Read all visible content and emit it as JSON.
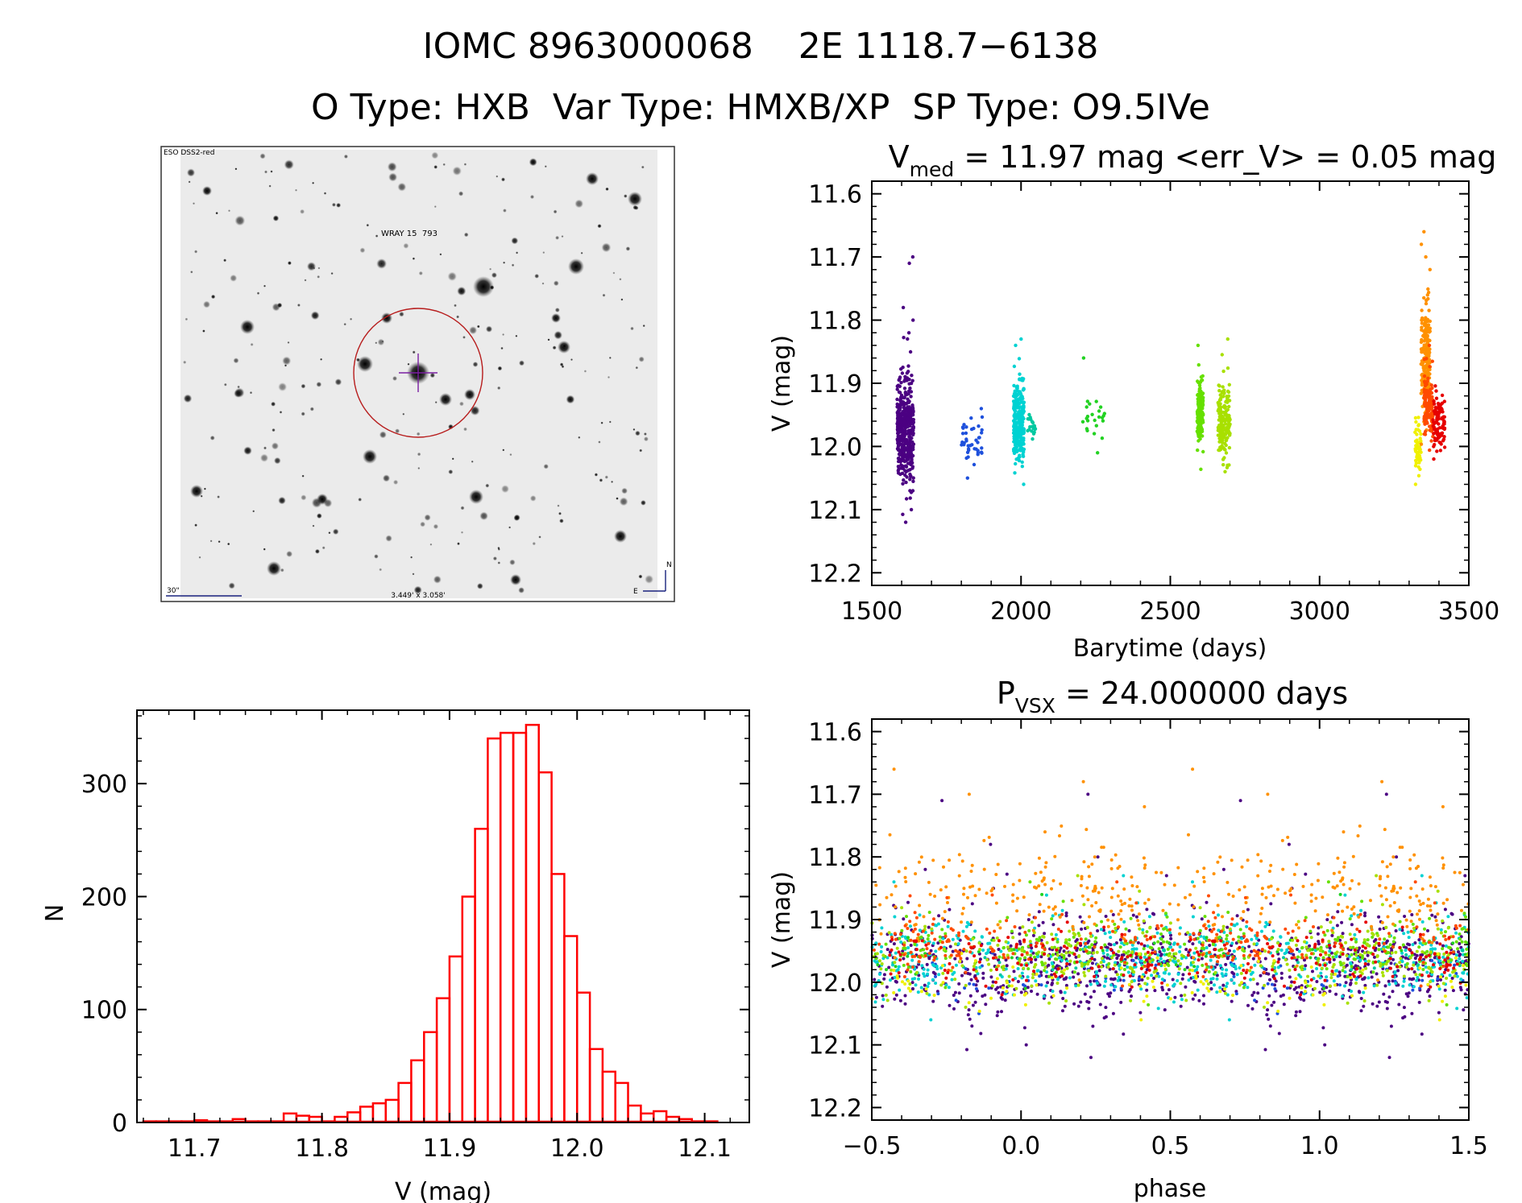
{
  "header": {
    "line1": "IOMC 8963000068    2E 1118.7−6138",
    "line2": "O Type: HXB  Var Type: HMXB/XP  SP Type: O9.5IVe"
  },
  "finder": {
    "survey_label": "ESO DSS2-red",
    "target_label": "WRAY 15  793",
    "scale_label": "30\"",
    "fov_label": "3.449' x 3.058'",
    "north_label": "N",
    "east_label": "E"
  },
  "colors": {
    "hist": "#ff0000",
    "axis": "#000000",
    "finder_label": "#1a237e",
    "target_circle": "#b71c1c",
    "target_cross": "#7b1fa2"
  },
  "chart_data": [
    {
      "type": "scatter",
      "id": "lightcurve",
      "title_main": "V",
      "title_sub": "med",
      "title_rest": " = 11.97 mag <err_V> = 0.05 mag",
      "xlabel": "Barytime (days)",
      "ylabel": "V (mag)",
      "xlim": [
        1500,
        3500
      ],
      "ylim": [
        12.22,
        11.58
      ],
      "xticks": [
        1500,
        2000,
        2500,
        3000,
        3500
      ],
      "xtick_labels": [
        "1500",
        "2000",
        "2500",
        "3000",
        "3500"
      ],
      "yticks": [
        11.6,
        11.7,
        11.8,
        11.9,
        12.0,
        12.1,
        12.2
      ],
      "ytick_labels": [
        "11.6",
        "11.7",
        "11.8",
        "11.9",
        "12.0",
        "12.1",
        "12.2"
      ],
      "clusters": [
        {
          "x": [
            1585,
            1640
          ],
          "center": 11.97,
          "spread": 0.06,
          "n": 420,
          "color": "#4b0082",
          "outliers": [
            11.7,
            11.71,
            11.78,
            11.8,
            11.82,
            12.1,
            12.12
          ]
        },
        {
          "x": [
            1800,
            1870
          ],
          "center": 11.99,
          "spread": 0.025,
          "n": 40,
          "color": "#1e50dc",
          "outliers": [
            12.05,
            11.94
          ]
        },
        {
          "x": [
            1975,
            2010
          ],
          "center": 11.96,
          "spread": 0.05,
          "n": 260,
          "color": "#00d2d2",
          "outliers": [
            11.83,
            11.84,
            12.06
          ]
        },
        {
          "x": [
            2020,
            2050
          ],
          "center": 11.97,
          "spread": 0.015,
          "n": 20,
          "color": "#00c8a0",
          "outliers": []
        },
        {
          "x": [
            2195,
            2280
          ],
          "center": 11.96,
          "spread": 0.02,
          "n": 22,
          "color": "#22d222",
          "outliers": [
            11.86,
            12.01
          ]
        },
        {
          "x": [
            2590,
            2610
          ],
          "center": 11.95,
          "spread": 0.035,
          "n": 160,
          "color": "#66e000",
          "outliers": [
            11.84
          ]
        },
        {
          "x": [
            2660,
            2700
          ],
          "center": 11.96,
          "spread": 0.04,
          "n": 170,
          "color": "#a8e000",
          "outliers": [
            11.83,
            12.04
          ]
        },
        {
          "x": [
            3320,
            3340
          ],
          "center": 12.0,
          "spread": 0.03,
          "n": 50,
          "color": "#f0f000",
          "outliers": [
            12.06
          ]
        },
        {
          "x": [
            3340,
            3370
          ],
          "center": 11.86,
          "spread": 0.06,
          "n": 180,
          "color": "#ff9100",
          "outliers": [
            11.66,
            11.68,
            11.7,
            11.72
          ]
        },
        {
          "x": [
            3350,
            3380
          ],
          "center": 11.93,
          "spread": 0.04,
          "n": 120,
          "color": "#ff4a00",
          "outliers": [
            11.84
          ]
        },
        {
          "x": [
            3380,
            3420
          ],
          "center": 11.96,
          "spread": 0.03,
          "n": 100,
          "color": "#e60000",
          "outliers": [
            12.02
          ]
        }
      ]
    },
    {
      "type": "bar",
      "id": "histogram",
      "xlabel": "V (mag)",
      "ylabel": "N",
      "xlim": [
        11.655,
        12.135
      ],
      "ylim": [
        0,
        365
      ],
      "bin_start": 11.66,
      "bin_width": 0.01,
      "values": [
        1,
        1,
        1,
        1,
        2,
        1,
        1,
        3,
        1,
        1,
        1,
        8,
        6,
        5,
        1,
        5,
        9,
        14,
        17,
        20,
        35,
        55,
        80,
        110,
        147,
        200,
        260,
        340,
        345,
        345,
        352,
        310,
        220,
        165,
        115,
        65,
        45,
        35,
        15,
        8,
        10,
        5,
        3,
        1,
        1
      ],
      "xticks": [
        11.7,
        11.8,
        11.9,
        12.0,
        12.1
      ],
      "xtick_labels": [
        "11.7",
        "11.8",
        "11.9",
        "12.0",
        "12.1"
      ],
      "yticks": [
        0,
        100,
        200,
        300
      ],
      "ytick_labels": [
        "0",
        "100",
        "200",
        "300"
      ]
    },
    {
      "type": "scatter",
      "id": "phased",
      "title_main": "P",
      "title_sub": "VSX",
      "title_rest": " = 24.000000 days",
      "xlabel": "phase",
      "ylabel": "V (mag)",
      "xlim": [
        -0.5,
        1.5
      ],
      "ylim": [
        12.22,
        11.58
      ],
      "period_days": 24.0,
      "xticks": [
        -0.5,
        0.0,
        0.5,
        1.0,
        1.5
      ],
      "xtick_labels": [
        "−0.5",
        "0.0",
        "0.5",
        "1.0",
        "1.5"
      ],
      "yticks": [
        11.6,
        11.7,
        11.8,
        11.9,
        12.0,
        12.1,
        12.2
      ],
      "ytick_labels": [
        "11.6",
        "11.7",
        "11.8",
        "11.9",
        "12.0",
        "12.1",
        "12.2"
      ]
    }
  ]
}
